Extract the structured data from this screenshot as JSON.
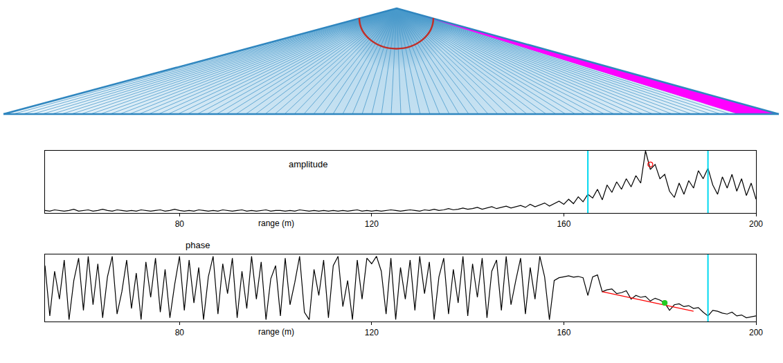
{
  "chart_data": [
    {
      "type": "line",
      "title": "amplitude",
      "xlabel": "range (m)",
      "tick_labels": "x",
      "xlim": [
        52,
        200
      ],
      "xticks": [
        80,
        120,
        160,
        200
      ],
      "ylim": [
        0,
        100
      ],
      "x": [
        52,
        53,
        54,
        55,
        56,
        57,
        58,
        59,
        60,
        61,
        62,
        63,
        64,
        65,
        66,
        67,
        68,
        69,
        70,
        71,
        72,
        73,
        74,
        75,
        76,
        77,
        78,
        79,
        80,
        81,
        82,
        83,
        84,
        85,
        86,
        87,
        88,
        89,
        90,
        91,
        92,
        93,
        94,
        95,
        96,
        97,
        98,
        99,
        100,
        101,
        102,
        103,
        104,
        105,
        106,
        107,
        108,
        109,
        110,
        111,
        112,
        113,
        114,
        115,
        116,
        117,
        118,
        119,
        120,
        121,
        122,
        123,
        124,
        125,
        126,
        127,
        128,
        129,
        130,
        131,
        132,
        133,
        134,
        135,
        136,
        137,
        138,
        139,
        140,
        141,
        142,
        143,
        144,
        145,
        146,
        147,
        148,
        149,
        150,
        151,
        152,
        153,
        154,
        155,
        156,
        157,
        158,
        159,
        160,
        161,
        162,
        163,
        164,
        165,
        166,
        167,
        168,
        169,
        170,
        171,
        172,
        173,
        174,
        175,
        176,
        177,
        178,
        179,
        180,
        181,
        182,
        183,
        184,
        185,
        186,
        187,
        188,
        189,
        190,
        191,
        192,
        193,
        194,
        195,
        196,
        197,
        198,
        199,
        200
      ],
      "series": [
        {
          "type": "line",
          "color": "#000000",
          "values": [
            4,
            3,
            5,
            4,
            3,
            4,
            6,
            3,
            4,
            5,
            3,
            4,
            6,
            4,
            3,
            5,
            4,
            3,
            4,
            3,
            5,
            4,
            3,
            4,
            5,
            3,
            4,
            6,
            4,
            3,
            4,
            3,
            5,
            4,
            3,
            4,
            3,
            5,
            4,
            3,
            4,
            5,
            3,
            4,
            3,
            4,
            5,
            3,
            4,
            4,
            3,
            4,
            3,
            5,
            4,
            3,
            4,
            3,
            4,
            3,
            4,
            3,
            4,
            3,
            4,
            5,
            3,
            4,
            3,
            4,
            3,
            4,
            5,
            4,
            3,
            4,
            5,
            4,
            3,
            5,
            4,
            6,
            4,
            5,
            7,
            5,
            6,
            8,
            6,
            7,
            9,
            6,
            8,
            10,
            7,
            9,
            11,
            8,
            10,
            12,
            9,
            14,
            10,
            13,
            16,
            11,
            15,
            19,
            14,
            22,
            15,
            26,
            18,
            30,
            24,
            38,
            21,
            45,
            33,
            50,
            38,
            55,
            42,
            60,
            48,
            100,
            70,
            78,
            55,
            62,
            35,
            25,
            48,
            30,
            52,
            40,
            68,
            55,
            72,
            45,
            30,
            58,
            40,
            62,
            35,
            55,
            28,
            48,
            22
          ]
        },
        {
          "type": "vline",
          "color": "#00d8f0",
          "x": [
            165,
            190
          ]
        },
        {
          "type": "scatter",
          "marker": "circle-open",
          "color": "#ff0000",
          "x": [
            178
          ],
          "values": [
            78
          ]
        }
      ]
    },
    {
      "type": "line",
      "title": "phase",
      "xlabel": "range (m)",
      "tick_labels": "x",
      "xlim": [
        52,
        200
      ],
      "xticks": [
        80,
        120,
        160,
        200
      ],
      "ylim": [
        -180,
        180
      ],
      "x": [
        52,
        53,
        54,
        55,
        56,
        57,
        58,
        59,
        60,
        61,
        62,
        63,
        64,
        65,
        66,
        67,
        68,
        69,
        70,
        71,
        72,
        73,
        74,
        75,
        76,
        77,
        78,
        79,
        80,
        81,
        82,
        83,
        84,
        85,
        86,
        87,
        88,
        89,
        90,
        91,
        92,
        93,
        94,
        95,
        96,
        97,
        98,
        99,
        100,
        101,
        102,
        103,
        104,
        105,
        106,
        107,
        108,
        109,
        110,
        111,
        112,
        113,
        114,
        115,
        116,
        117,
        118,
        119,
        120,
        121,
        122,
        123,
        124,
        125,
        126,
        127,
        128,
        129,
        130,
        131,
        132,
        133,
        134,
        135,
        136,
        137,
        138,
        139,
        140,
        141,
        142,
        143,
        144,
        145,
        146,
        147,
        148,
        149,
        150,
        151,
        152,
        153,
        154,
        155,
        156,
        157,
        158,
        159,
        160,
        161,
        162,
        163,
        164,
        165,
        166,
        167,
        168,
        169,
        170,
        171,
        172,
        173,
        174,
        175,
        176,
        177,
        178,
        179,
        180,
        181,
        182,
        183,
        184,
        185,
        186,
        187,
        188,
        189,
        190,
        191,
        192,
        193,
        194,
        195,
        196,
        197,
        198,
        199,
        200
      ],
      "series": [
        {
          "type": "line",
          "color": "#000000",
          "values": [
            120,
            -150,
            90,
            -60,
            150,
            -170,
            40,
            160,
            -120,
            170,
            -90,
            130,
            -160,
            60,
            170,
            -140,
            -20,
            150,
            -110,
            80,
            -170,
            140,
            -50,
            160,
            -130,
            100,
            -160,
            20,
            170,
            -120,
            150,
            -80,
            110,
            -170,
            60,
            170,
            -140,
            130,
            -30,
            160,
            -160,
            90,
            -110,
            170,
            -60,
            140,
            -170,
            50,
            120,
            -150,
            160,
            -90,
            30,
            170,
            -130,
            -170,
            100,
            -40,
            150,
            -160,
            120,
            170,
            -100,
            40,
            -170,
            150,
            -60,
            160,
            130,
            170,
            90,
            -140,
            160,
            -170,
            110,
            -60,
            150,
            -120,
            170,
            -30,
            140,
            -170,
            60,
            160,
            -140,
            100,
            -80,
            170,
            -150,
            130,
            -50,
            160,
            -160,
            90,
            150,
            -120,
            170,
            -90,
            40,
            160,
            -140,
            110,
            -60,
            170,
            60,
            -170,
            40,
            55,
            60,
            65,
            58,
            62,
            55,
            -40,
            60,
            70,
            -20,
            -10,
            -5,
            -30,
            -25,
            -15,
            -60,
            -40,
            -50,
            -45,
            -70,
            -55,
            -65,
            -80,
            -120,
            -90,
            -85,
            -100,
            -95,
            -110,
            -105,
            -130,
            -150,
            -120,
            -125,
            -135,
            -140,
            -130,
            -150,
            -145,
            -160,
            -155,
            -150
          ]
        },
        {
          "type": "line",
          "color": "#ff0000",
          "x": [
            168,
            187
          ],
          "values": [
            -20,
            -125
          ]
        },
        {
          "type": "scatter",
          "marker": "circle",
          "color": "#22cc22",
          "x": [
            181
          ],
          "values": [
            -80
          ]
        },
        {
          "type": "vline",
          "color": "#00d8f0",
          "x": [
            190
          ]
        }
      ]
    }
  ]
}
